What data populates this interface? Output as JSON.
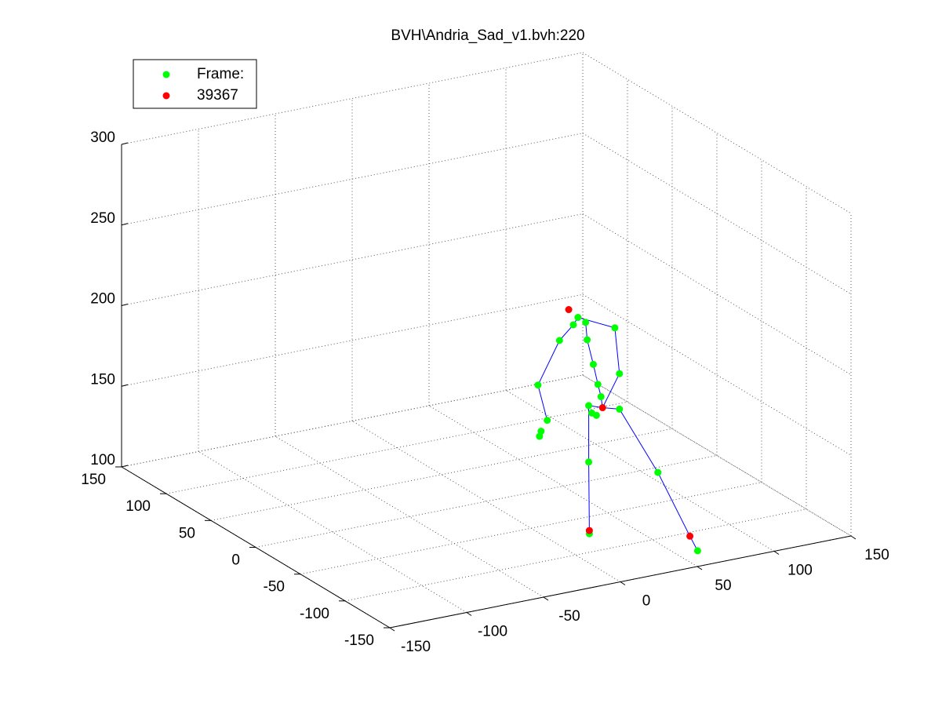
{
  "chart_data": {
    "type": "scatter3d",
    "title": "BVH\\Andria_Sad_v1.bvh:220",
    "xlim": [
      -150,
      150
    ],
    "xticks": [
      -150,
      -100,
      -50,
      0,
      50,
      100,
      150
    ],
    "ylim": [
      -150,
      150
    ],
    "yticks": [
      -150,
      -100,
      -50,
      0,
      50,
      100,
      150
    ],
    "zlim": [
      100,
      300
    ],
    "zticks": [
      100,
      150,
      200,
      250,
      300
    ],
    "grid": true,
    "legend": "northwest",
    "series": [
      {
        "name": "Frame:",
        "color": "#00ff00",
        "x": [
          16,
          21,
          13,
          4,
          40,
          22,
          26,
          43,
          29,
          -10,
          31,
          43,
          23,
          25,
          28,
          -4,
          -8,
          -9,
          23,
          68,
          24,
          63
        ],
        "y": [
          -75,
          -75,
          -75,
          -75,
          -75,
          -75,
          -75,
          -75,
          -75,
          -75,
          -75,
          -75,
          -75,
          -75,
          -75,
          -75,
          -75,
          -75,
          -75,
          -75,
          -74,
          -128
        ],
        "z": [
          236,
          232,
          232,
          224,
          225,
          221,
          205,
          196,
          192,
          199,
          184,
          174,
          180,
          175,
          173,
          176,
          170,
          167,
          145,
          130,
          100,
          100
        ]
      },
      {
        "name": "39367",
        "color": "#ff0000",
        "x": [
          10,
          32,
          24,
          58
        ],
        "y": [
          -75,
          -75,
          -74,
          -128
        ],
        "z": [
          242,
          177,
          102,
          110
        ]
      },
      {
        "color": "#0000ff",
        "mode": "line",
        "x": [
          -4,
          -10,
          4,
          13,
          16,
          40,
          43,
          32,
          null,
          21,
          22,
          26,
          29,
          31,
          32,
          43,
          68,
          58,
          63,
          null,
          32,
          23,
          23,
          24,
          24
        ],
        "y": [
          -75,
          -75,
          -75,
          -75,
          -75,
          -75,
          -75,
          -75,
          null,
          -75,
          -75,
          -75,
          -75,
          -75,
          -75,
          -75,
          -75,
          -128,
          -128,
          null,
          -75,
          -75,
          -75,
          -74,
          -74
        ],
        "z": [
          176,
          199,
          224,
          232,
          236,
          225,
          196,
          177,
          null,
          232,
          221,
          205,
          192,
          184,
          177,
          174,
          130,
          110,
          100,
          null,
          177,
          180,
          145,
          102,
          100
        ]
      }
    ]
  }
}
